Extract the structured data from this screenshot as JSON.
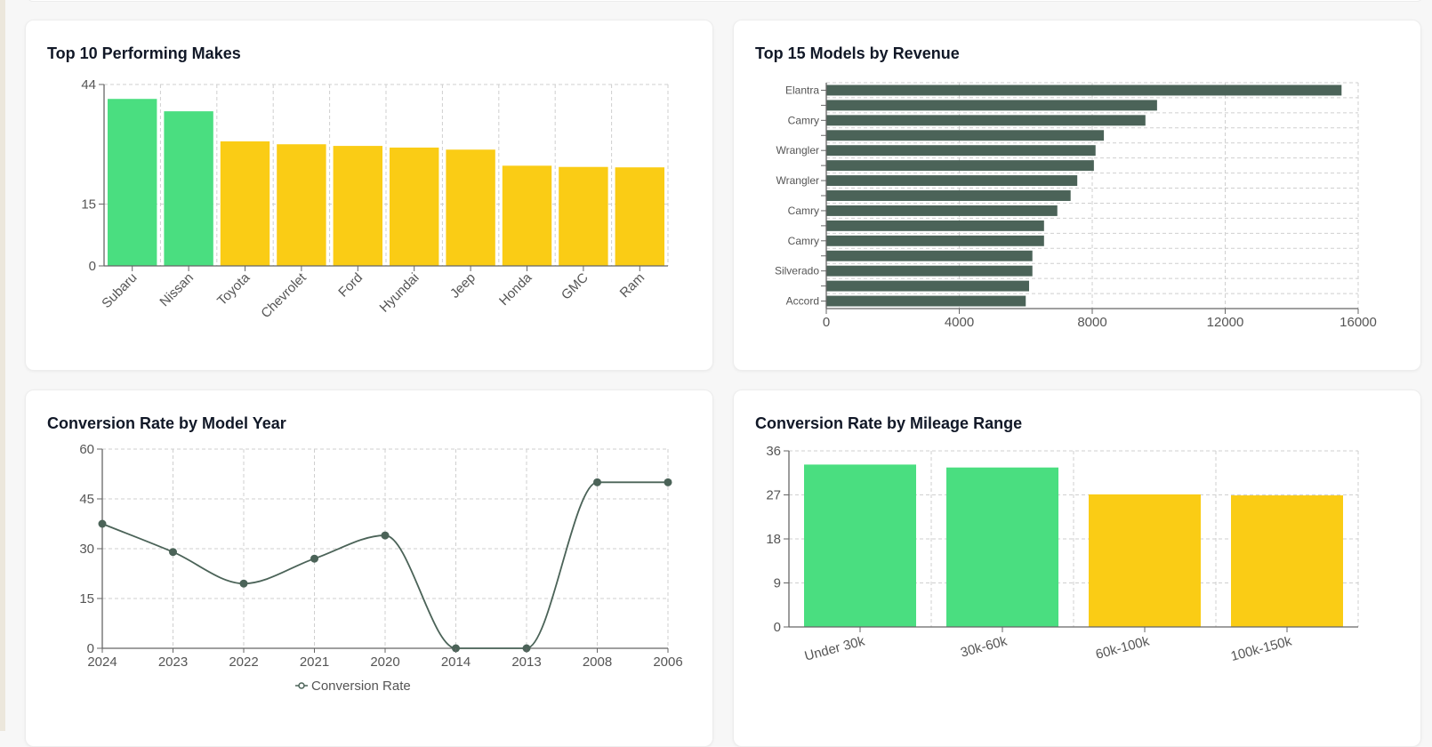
{
  "colors": {
    "green": "#4ade80",
    "yellow": "#facc15",
    "dark": "#4b6358",
    "grid": "#cfcfcf",
    "axis": "#666666"
  },
  "chart_data": [
    {
      "id": "makes",
      "type": "bar",
      "title": "Top 10 Performing Makes",
      "categories": [
        "Subaru",
        "Nissan",
        "Toyota",
        "Chevrolet",
        "Ford",
        "Hyundai",
        "Jeep",
        "Honda",
        "GMC",
        "Ram"
      ],
      "values": [
        40.5,
        37.5,
        30.2,
        29.5,
        29.1,
        28.7,
        28.2,
        24.3,
        24.0,
        23.9
      ],
      "bar_colors": [
        "green",
        "green",
        "yellow",
        "yellow",
        "yellow",
        "yellow",
        "yellow",
        "yellow",
        "yellow",
        "yellow"
      ],
      "yticks": [
        "0",
        "15",
        "44"
      ],
      "ylim": [
        0,
        44
      ],
      "grid": true
    },
    {
      "id": "models",
      "type": "bar",
      "orientation": "horizontal",
      "title": "Top 15 Models by Revenue",
      "categories": [
        "Elantra",
        "",
        "Camry",
        "",
        "Wrangler",
        "",
        "Wrangler",
        "",
        "Camry",
        "",
        "Camry",
        "",
        "Silverado",
        "",
        "Accord"
      ],
      "values": [
        15500,
        9950,
        9600,
        8350,
        8100,
        8050,
        7550,
        7350,
        6950,
        6550,
        6550,
        6200,
        6200,
        6100,
        6000
      ],
      "xticks": [
        "0",
        "4000",
        "8000",
        "12000",
        "16000"
      ],
      "xlim": [
        0,
        16000
      ],
      "grid": true
    },
    {
      "id": "year",
      "type": "line",
      "title": "Conversion Rate by Model Year",
      "categories": [
        "2024",
        "2023",
        "2022",
        "2021",
        "2020",
        "2014",
        "2013",
        "2008",
        "2006"
      ],
      "series": [
        {
          "name": "Conversion Rate",
          "values": [
            37.5,
            29,
            19.5,
            27,
            34,
            0,
            0,
            50,
            50
          ]
        }
      ],
      "yticks": [
        "0",
        "15",
        "30",
        "45",
        "60"
      ],
      "ylim": [
        0,
        60
      ],
      "legend": "bottom",
      "grid": true
    },
    {
      "id": "mileage",
      "type": "bar",
      "title": "Conversion Rate by Mileage Range",
      "categories": [
        "Under 30k",
        "30k-60k",
        "60k-100k",
        "100k-150k"
      ],
      "values": [
        33.2,
        32.6,
        27.1,
        26.9
      ],
      "bar_colors": [
        "green",
        "green",
        "yellow",
        "yellow"
      ],
      "yticks": [
        "0",
        "9",
        "18",
        "27",
        "36"
      ],
      "ylim": [
        0,
        36
      ],
      "grid": true
    }
  ]
}
